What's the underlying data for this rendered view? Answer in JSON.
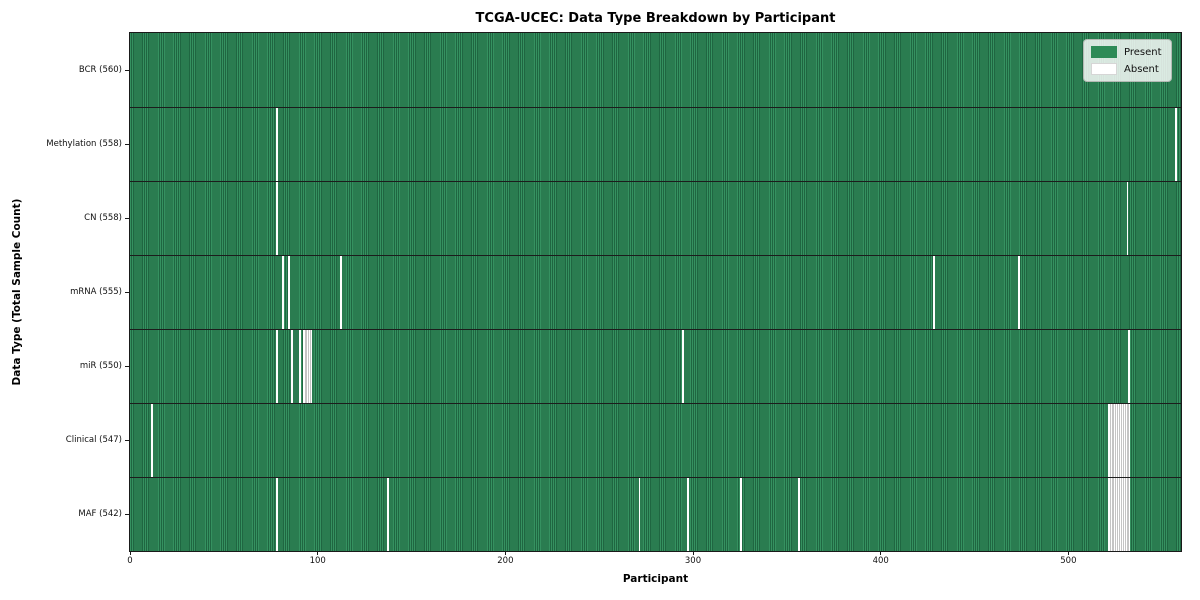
{
  "title": "TCGA-UCEC: Data Type Breakdown by Participant",
  "chart_data": {
    "type": "heatmap",
    "title": "TCGA-UCEC: Data Type Breakdown by Participant",
    "xlabel": "Participant",
    "ylabel": "Data Type (Total Sample Count)",
    "x_ticks": [
      0,
      100,
      200,
      300,
      400,
      500
    ],
    "x_range": [
      0,
      560
    ],
    "total_participants": 560,
    "grid": false,
    "legend_position": "upper right",
    "legend": {
      "entries": [
        {
          "label": "Present",
          "color": "#2e8b57"
        },
        {
          "label": "Absent",
          "color": "#ffffff"
        }
      ]
    },
    "colors": {
      "present": "#2e8b57",
      "present_edge": "#1f6641",
      "absent": "#ffffff",
      "absent_edge": "#c4c4c4"
    },
    "rows": [
      {
        "label": "BCR (560)",
        "data_type": "BCR",
        "sample_count": 560,
        "absent_participants": []
      },
      {
        "label": "Methylation (558)",
        "data_type": "Methylation",
        "sample_count": 558,
        "absent_participants": [
          78,
          557
        ]
      },
      {
        "label": "CN (558)",
        "data_type": "CN",
        "sample_count": 558,
        "absent_participants": [
          78,
          531
        ]
      },
      {
        "label": "mRNA (555)",
        "data_type": "mRNA",
        "sample_count": 555,
        "absent_participants": [
          81,
          84,
          112,
          428,
          473
        ]
      },
      {
        "label": "miR (550)",
        "data_type": "miR",
        "sample_count": 550,
        "absent_participants": [
          78,
          86,
          90,
          92,
          93,
          94,
          95,
          96,
          294,
          532
        ]
      },
      {
        "label": "Clinical (547)",
        "data_type": "Clinical",
        "sample_count": 547,
        "absent_participants": [
          11,
          521,
          522,
          523,
          524,
          525,
          526,
          527,
          528,
          529,
          530,
          531,
          532
        ]
      },
      {
        "label": "MAF (542)",
        "data_type": "MAF",
        "sample_count": 542,
        "absent_participants": [
          78,
          137,
          271,
          297,
          325,
          356,
          521,
          522,
          523,
          524,
          525,
          526,
          527,
          528,
          529,
          530,
          531,
          532
        ]
      }
    ]
  }
}
